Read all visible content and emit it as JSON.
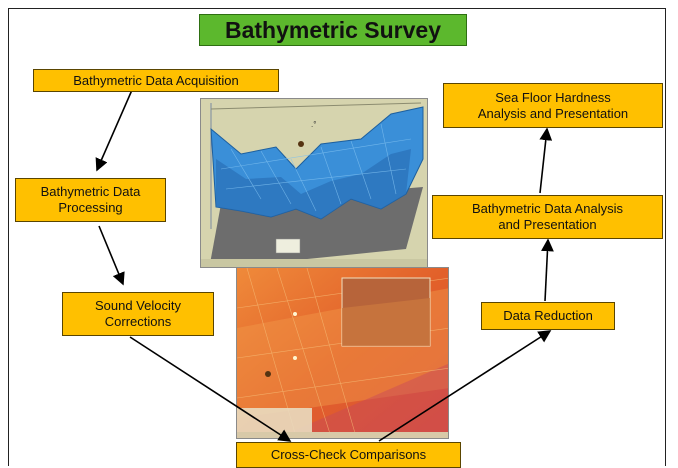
{
  "title": "Bathymetric Survey",
  "nodes": {
    "acquisition": "Bathymetric Data Acquisition",
    "processing": [
      "Bathymetric Data",
      "Processing"
    ],
    "sound_velocity": [
      "Sound Velocity",
      "Corrections"
    ],
    "cross_check": "Cross-Check Comparisons",
    "data_reduction": "Data Reduction",
    "analysis": [
      "Bathymetric Data Analysis",
      "and Presentation"
    ],
    "hardness": [
      "Sea Floor Hardness",
      "Analysis and Presentation"
    ]
  },
  "colors": {
    "box_fill": "#ffc000",
    "title_fill": "#5cb82d",
    "surface_blue": "#3a8fd8",
    "map_orange": "#e8772e"
  },
  "images": {
    "top": "3d-bathymetry-surface-screenshot",
    "bottom": "sound-velocity-map-screenshot"
  }
}
